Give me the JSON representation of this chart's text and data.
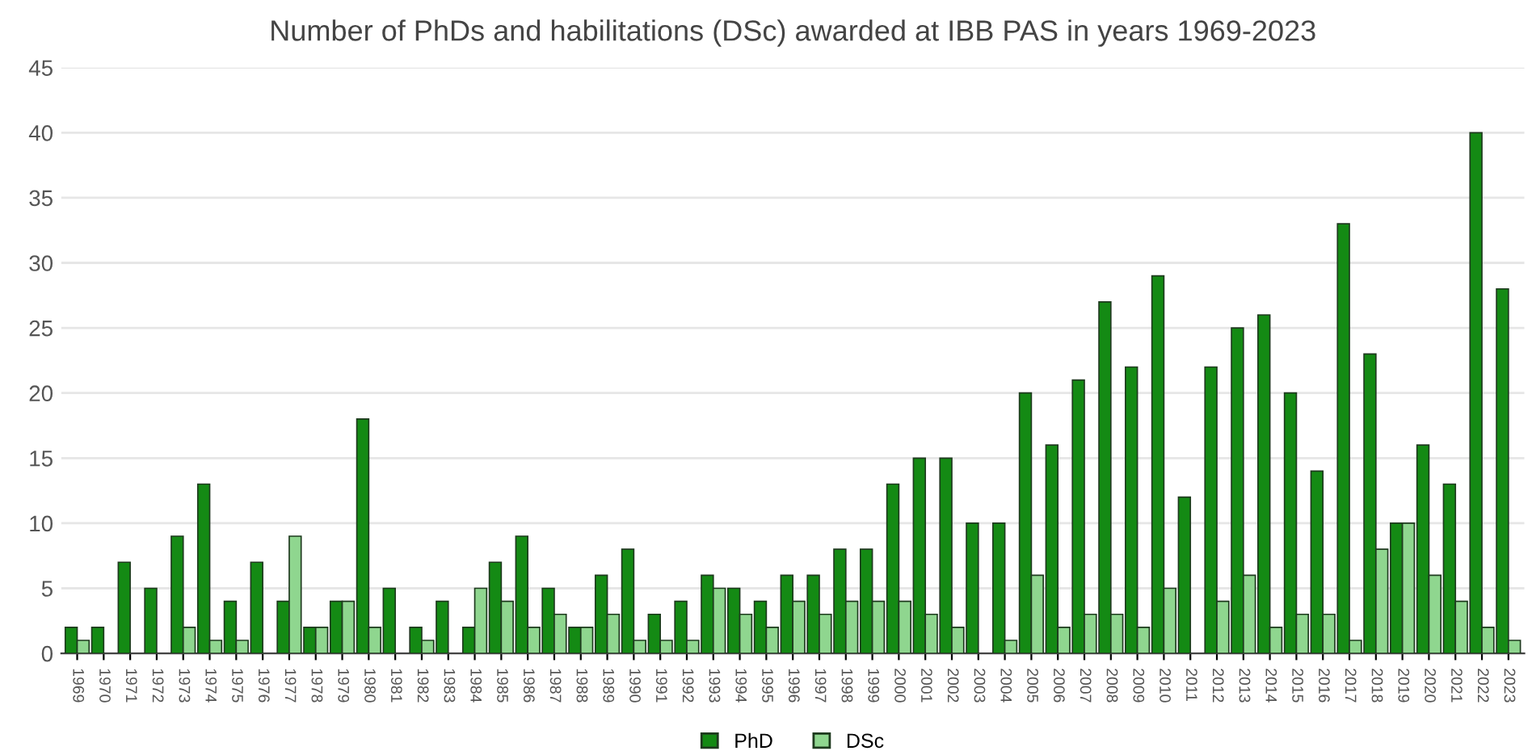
{
  "chart_data": {
    "type": "bar",
    "title": "Number of PhDs and habilitations (DSc) awarded at IBB PAS in years 1969-2023",
    "categories": [
      "1969",
      "1970",
      "1971",
      "1972",
      "1973",
      "1974",
      "1975",
      "1976",
      "1977",
      "1978",
      "1979",
      "1980",
      "1981",
      "1982",
      "1983",
      "1984",
      "1985",
      "1986",
      "1987",
      "1988",
      "1989",
      "1990",
      "1991",
      "1992",
      "1993",
      "1994",
      "1995",
      "1996",
      "1997",
      "1998",
      "1999",
      "2000",
      "2001",
      "2002",
      "2003",
      "2004",
      "2005",
      "2006",
      "2007",
      "2008",
      "2009",
      "2010",
      "2011",
      "2012",
      "2013",
      "2014",
      "2015",
      "2016",
      "2017",
      "2018",
      "2019",
      "2020",
      "2021",
      "2022",
      "2023"
    ],
    "series": [
      {
        "name": "PhD",
        "color": "#148a14",
        "values": [
          2,
          2,
          7,
          5,
          9,
          13,
          4,
          7,
          4,
          2,
          4,
          18,
          5,
          2,
          4,
          2,
          7,
          9,
          5,
          2,
          6,
          8,
          3,
          4,
          6,
          5,
          4,
          6,
          6,
          8,
          8,
          13,
          15,
          15,
          10,
          10,
          20,
          16,
          21,
          27,
          22,
          29,
          12,
          22,
          25,
          26,
          20,
          14,
          33,
          23,
          10,
          16,
          13,
          40,
          28
        ]
      },
      {
        "name": "DSc",
        "color": "#8fd68f",
        "values": [
          1,
          0,
          0,
          0,
          2,
          1,
          1,
          0,
          9,
          2,
          4,
          2,
          0,
          1,
          0,
          5,
          4,
          2,
          3,
          2,
          3,
          1,
          1,
          1,
          5,
          3,
          2,
          4,
          3,
          4,
          4,
          4,
          3,
          2,
          0,
          1,
          6,
          2,
          3,
          3,
          2,
          5,
          0,
          4,
          6,
          2,
          3,
          3,
          1,
          8,
          10,
          6,
          4,
          2,
          1
        ]
      }
    ],
    "ylim": [
      0,
      45
    ],
    "yticks": [
      0,
      5,
      10,
      15,
      20,
      25,
      30,
      35,
      40,
      45
    ],
    "grid": "y",
    "legend": "bottom"
  }
}
